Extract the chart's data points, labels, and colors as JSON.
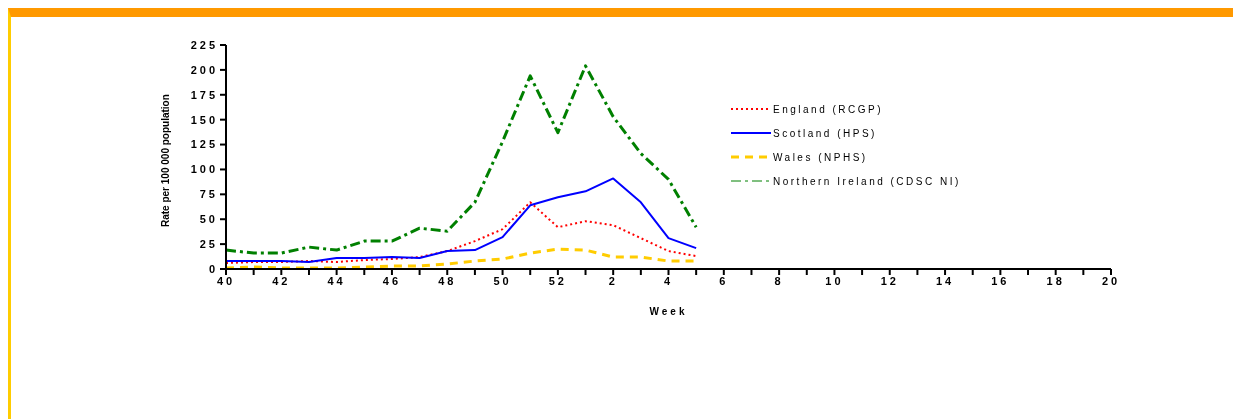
{
  "chart_data": {
    "type": "line",
    "xlabel": "Week",
    "ylabel": "Rate per 100 000 population",
    "categories": [
      "40",
      null,
      "42",
      null,
      "44",
      null,
      "46",
      null,
      "48",
      null,
      "50",
      null,
      "52",
      null,
      "2",
      null,
      "4",
      null,
      "6",
      null,
      "8",
      null,
      "10",
      null,
      "12",
      null,
      "14",
      null,
      "16",
      null,
      "18",
      null,
      "20"
    ],
    "series": [
      {
        "name": "England (RCGP)",
        "color": "#ff0000",
        "line_style": "dotted",
        "values": [
          6,
          7,
          7,
          8,
          7,
          9,
          10,
          12,
          18,
          28,
          40,
          67,
          42,
          48,
          44,
          31,
          18,
          13,
          null,
          null,
          null,
          null,
          null,
          null,
          null,
          null,
          null,
          null,
          null,
          null,
          null,
          null,
          null
        ]
      },
      {
        "name": "Scotland (HPS)",
        "color": "#0000ff",
        "line_style": "solid",
        "values": [
          8,
          8,
          8,
          7,
          11,
          11,
          12,
          11,
          18,
          19,
          32,
          64,
          72,
          78,
          91,
          67,
          31,
          21,
          null,
          null,
          null,
          null,
          null,
          null,
          null,
          null,
          null,
          null,
          null,
          null,
          null,
          null,
          null
        ]
      },
      {
        "name": "Wales (NPHS)",
        "color": "#ffcc00",
        "line_style": "dashed",
        "values": [
          1,
          2,
          1,
          1,
          1,
          2,
          3,
          3,
          5,
          8,
          10,
          16,
          20,
          19,
          12,
          12,
          8,
          8,
          null,
          null,
          null,
          null,
          null,
          null,
          null,
          null,
          null,
          null,
          null,
          null,
          null,
          null,
          null
        ]
      },
      {
        "name": "Northern Ireland (CDSC NI)",
        "color": "#008000",
        "line_style": "dashdot",
        "values": [
          19,
          16,
          16,
          22,
          19,
          28,
          28,
          41,
          38,
          67,
          128,
          194,
          137,
          204,
          153,
          116,
          90,
          42,
          null,
          null,
          null,
          null,
          null,
          null,
          null,
          null,
          null,
          null,
          null,
          null,
          null,
          null,
          null
        ]
      }
    ],
    "ylim": [
      0,
      225
    ],
    "yticks": [
      0,
      25,
      50,
      75,
      100,
      125,
      150,
      175,
      200,
      225
    ],
    "grid": false,
    "legend": "top right"
  }
}
